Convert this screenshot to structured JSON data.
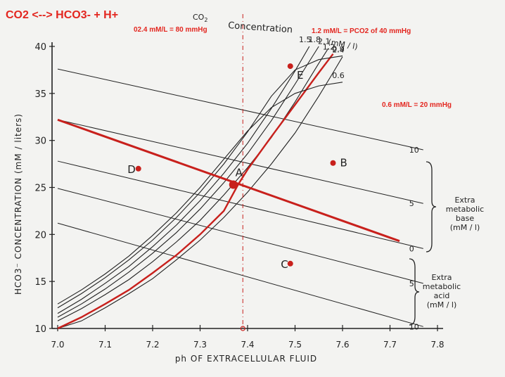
{
  "header": {
    "equation": "CO2 <--> HCO3- + H+",
    "note_80": "02.4 mM/L = 80 mmHg",
    "note_40": "1.2 mM/L = PCO2 of 40 mmHg",
    "note_20": "0.6 mM/L = 20 mmHg"
  },
  "chart_data": {
    "type": "line",
    "xlabel": "ph  OF  EXTRACELLULAR  FLUID",
    "ylabel": "HCO3⁻  CONCENTRATION   (mM / liters)",
    "xlim": [
      7.0,
      7.8
    ],
    "ylim": [
      10,
      40
    ],
    "x_ticks": [
      "7.0",
      "7.1",
      "7.2",
      "7.3",
      "7.4",
      "7.5",
      "7.6",
      "7.7",
      "7.8"
    ],
    "y_ticks": [
      "10",
      "15",
      "20",
      "25",
      "30",
      "35",
      "40"
    ],
    "co2_title_1": "CO",
    "co2_title_sub": "2",
    "co2_title_2": "Concentration",
    "co2_units": "(mM / l)",
    "isobar_colors": {
      "normal": "#c8201c",
      "other": "#222222"
    },
    "co2_isobars": [
      {
        "label": "2.4",
        "points": [
          [
            7.0,
            10
          ],
          [
            7.05,
            10.8
          ],
          [
            7.1,
            12.2
          ],
          [
            7.15,
            13.7
          ],
          [
            7.2,
            15.3
          ],
          [
            7.25,
            17.3
          ],
          [
            7.3,
            19.4
          ],
          [
            7.35,
            21.8
          ],
          [
            7.4,
            24.5
          ],
          [
            7.45,
            27.5
          ],
          [
            7.5,
            30.8
          ],
          [
            7.55,
            34.7
          ],
          [
            7.58,
            37.2
          ],
          [
            7.6,
            38.9
          ]
        ]
      },
      {
        "label": "2.1",
        "points": [
          [
            7.0,
            10.8
          ],
          [
            7.05,
            12.1
          ],
          [
            7.1,
            13.6
          ],
          [
            7.15,
            15.2
          ],
          [
            7.2,
            17.1
          ],
          [
            7.25,
            19.2
          ],
          [
            7.3,
            21.5
          ],
          [
            7.35,
            24.2
          ],
          [
            7.4,
            27.1
          ],
          [
            7.45,
            30.3
          ],
          [
            7.5,
            34.1
          ],
          [
            7.55,
            38.2
          ],
          [
            7.57,
            39.8
          ]
        ]
      },
      {
        "label": "1.8",
        "points": [
          [
            7.0,
            11.2
          ],
          [
            7.05,
            12.6
          ],
          [
            7.1,
            14.2
          ],
          [
            7.15,
            16.0
          ],
          [
            7.2,
            18.0
          ],
          [
            7.25,
            20.2
          ],
          [
            7.3,
            22.7
          ],
          [
            7.35,
            25.5
          ],
          [
            7.4,
            28.6
          ],
          [
            7.45,
            32.1
          ],
          [
            7.5,
            36.0
          ],
          [
            7.55,
            40.0
          ]
        ]
      },
      {
        "label": "1.5",
        "points": [
          [
            7.0,
            11.6
          ],
          [
            7.05,
            13.1
          ],
          [
            7.1,
            14.8
          ],
          [
            7.15,
            16.6
          ],
          [
            7.2,
            18.7
          ],
          [
            7.25,
            21.0
          ],
          [
            7.3,
            23.6
          ],
          [
            7.35,
            26.5
          ],
          [
            7.4,
            29.7
          ],
          [
            7.45,
            33.4
          ],
          [
            7.5,
            37.4
          ],
          [
            7.53,
            40.0
          ]
        ]
      },
      {
        "label": "1.2",
        "points": [
          [
            7.0,
            10.0
          ],
          [
            7.05,
            11.2
          ],
          [
            7.1,
            12.6
          ],
          [
            7.15,
            14.1
          ],
          [
            7.2,
            15.9
          ],
          [
            7.25,
            17.8
          ],
          [
            7.3,
            20.0
          ],
          [
            7.35,
            22.5
          ],
          [
            7.38,
            25.3
          ],
          [
            7.4,
            26.9
          ],
          [
            7.45,
            30.4
          ],
          [
            7.5,
            33.8
          ],
          [
            7.55,
            37.2
          ],
          [
            7.58,
            39.2
          ]
        ]
      },
      {
        "label": "0.9",
        "points": [
          [
            7.0,
            12.2
          ],
          [
            7.05,
            13.7
          ],
          [
            7.1,
            15.4
          ],
          [
            7.15,
            17.3
          ],
          [
            7.2,
            19.4
          ],
          [
            7.25,
            21.8
          ],
          [
            7.3,
            24.5
          ],
          [
            7.35,
            27.5
          ],
          [
            7.4,
            30.9
          ],
          [
            7.45,
            34.7
          ],
          [
            7.5,
            37.5
          ],
          [
            7.55,
            38.6
          ],
          [
            7.6,
            39.0
          ]
        ]
      },
      {
        "label": "0.6",
        "points": [
          [
            7.0,
            12.6
          ],
          [
            7.05,
            14.1
          ],
          [
            7.1,
            15.8
          ],
          [
            7.15,
            17.7
          ],
          [
            7.2,
            19.9
          ],
          [
            7.25,
            22.3
          ],
          [
            7.3,
            25.0
          ],
          [
            7.35,
            28.0
          ],
          [
            7.4,
            31.0
          ],
          [
            7.45,
            33.5
          ],
          [
            7.5,
            35.0
          ],
          [
            7.55,
            35.8
          ],
          [
            7.6,
            36.2
          ]
        ]
      }
    ],
    "base_lines": [
      {
        "label": "10",
        "points": [
          [
            7.0,
            37.6
          ],
          [
            7.77,
            29.0
          ]
        ]
      },
      {
        "label": "5",
        "points": [
          [
            7.0,
            32.2
          ],
          [
            7.77,
            23.3
          ]
        ]
      },
      {
        "label": "0",
        "points": [
          [
            7.0,
            27.8
          ],
          [
            7.77,
            18.5
          ]
        ]
      },
      {
        "label": "5",
        "points": [
          [
            7.0,
            24.9
          ],
          [
            7.77,
            14.8
          ]
        ]
      },
      {
        "label": "10",
        "points": [
          [
            7.0,
            21.2
          ],
          [
            7.77,
            10.2
          ]
        ]
      }
    ],
    "normal_buffer_line": {
      "label": "0",
      "points": [
        [
          7.0,
          32.2
        ],
        [
          7.72,
          19.3
        ]
      ]
    },
    "reference_ph_line": {
      "x": 7.39
    },
    "points": [
      {
        "label": "A",
        "x": 7.37,
        "y": 25.3
      },
      {
        "label": "B",
        "x": 7.58,
        "y": 27.6
      },
      {
        "label": "C",
        "x": 7.49,
        "y": 16.9
      },
      {
        "label": "D",
        "x": 7.17,
        "y": 27.0
      },
      {
        "label": "E",
        "x": 7.49,
        "y": 37.9
      }
    ],
    "side_labels": {
      "base": [
        "Extra",
        "metabolic",
        "base",
        "(mM / l)"
      ],
      "acid": [
        "Extra",
        "metabolic",
        "acid",
        "(mM / l)"
      ]
    }
  }
}
